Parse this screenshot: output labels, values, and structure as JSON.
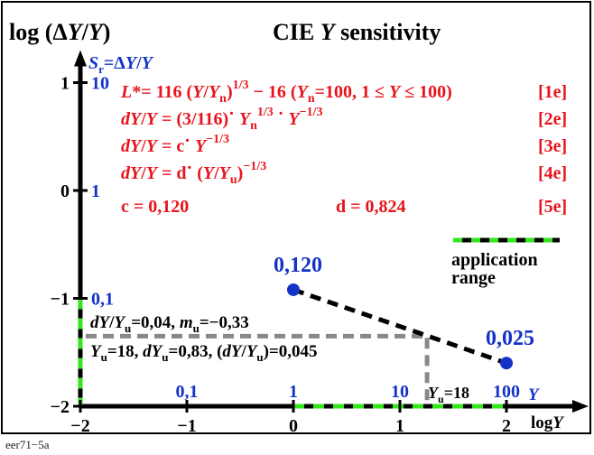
{
  "page": {
    "title_left": "log (ΔY/Y)",
    "title_right": "CIE Y sensitivity",
    "footer": "eer71−5a"
  },
  "chart_data": {
    "type": "line",
    "title": "CIE Y sensitivity",
    "ylabel": "log (ΔY/Y)",
    "xlabel": "log Y",
    "xlim": [
      -2,
      2.5
    ],
    "ylim": [
      -2,
      1.1
    ],
    "x_ticks": [
      {
        "x": -2,
        "label": "−2"
      },
      {
        "x": -1,
        "label": "−1"
      },
      {
        "x": 0,
        "label": "0"
      },
      {
        "x": 1,
        "label": "1"
      },
      {
        "x": 2,
        "label": "2"
      }
    ],
    "y_ticks": [
      {
        "y": 1,
        "label": "1"
      },
      {
        "y": 0,
        "label": "0"
      },
      {
        "y": -1,
        "label": "−1"
      },
      {
        "y": -2,
        "label": "−2"
      }
    ],
    "y_secondary_label": "Sr=ΔY/Y",
    "y_secondary_ticks": [
      {
        "y": 1,
        "label": "10"
      },
      {
        "y": 0,
        "label": "1"
      },
      {
        "y": -1,
        "label": "0,1"
      }
    ],
    "x_secondary_label": "Y",
    "x_secondary_ticks": [
      {
        "x": -1,
        "label": "0,1"
      },
      {
        "x": 0,
        "label": "1"
      },
      {
        "x": 1,
        "label": "10"
      },
      {
        "x": 2,
        "label": "100"
      }
    ],
    "series": [
      {
        "type": "line",
        "x": [
          0,
          2
        ],
        "y": [
          -0.92,
          -1.6
        ],
        "point_labels": [
          "0,120",
          "0,025"
        ],
        "color": "#1432c8",
        "line_color": "#000000"
      }
    ],
    "application_range_x": [
      0,
      2
    ],
    "application_range_y": [
      -1,
      -2
    ],
    "marker_point": {
      "x": 1.255,
      "y": -1.35
    },
    "legend": {
      "label": "application range",
      "placement": "right"
    },
    "annotations": {
      "slope_label": "dY/Yu=0,04, mu=−0,33",
      "yu_label": "Yu=18, dYu=0,83, (dY/Yu)=0,045",
      "yu_axis_label": "Yu=18"
    },
    "equations": [
      {
        "text": "L*= 116 (Y/Yn)1/3 − 16  (Yn=100, 1 ≤ Y ≤ 100)",
        "tag": "[1e]"
      },
      {
        "text": "dY/Y = (3/116) · Yn1/3 · Y−1/3",
        "tag": "[2e]"
      },
      {
        "text": "dY/Y = c · Y−1/3",
        "tag": "[3e]"
      },
      {
        "text": "dY/Y = d · (Y/Yu)−1/3",
        "tag": "[4e]"
      },
      {
        "text": "c = 0,120          d = 0,824",
        "tag": "[5e]"
      }
    ],
    "colors": {
      "red": "#e8141c",
      "blue": "#1432c8",
      "green": "#33e61e",
      "black": "#000000",
      "gray": "#888888"
    }
  }
}
